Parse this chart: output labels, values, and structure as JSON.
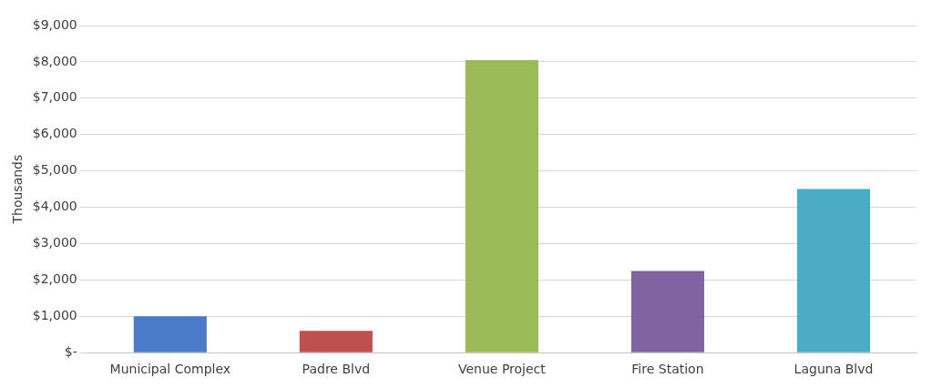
{
  "chart_data": {
    "type": "bar",
    "ylabel": "Thousands",
    "categories": [
      "Municipal Complex",
      "Padre Blvd",
      "Venue Project",
      "Fire Station",
      "Laguna Blvd"
    ],
    "values": [
      1000,
      600,
      8050,
      2250,
      4500
    ],
    "colors": [
      "#4a7bc8",
      "#c0504d",
      "#9bbb59",
      "#8064a2",
      "#4bacc6"
    ],
    "ylim": [
      0,
      9000
    ],
    "yticks": [
      {
        "value": 0,
        "label": "$-"
      },
      {
        "value": 1000,
        "label": "$1,000"
      },
      {
        "value": 2000,
        "label": "$2,000"
      },
      {
        "value": 3000,
        "label": "$3,000"
      },
      {
        "value": 4000,
        "label": "$4,000"
      },
      {
        "value": 5000,
        "label": "$5,000"
      },
      {
        "value": 6000,
        "label": "$6,000"
      },
      {
        "value": 7000,
        "label": "$7,000"
      },
      {
        "value": 8000,
        "label": "$8,000"
      },
      {
        "value": 9000,
        "label": "$9,000"
      }
    ],
    "grid": "y",
    "legend": false
  }
}
